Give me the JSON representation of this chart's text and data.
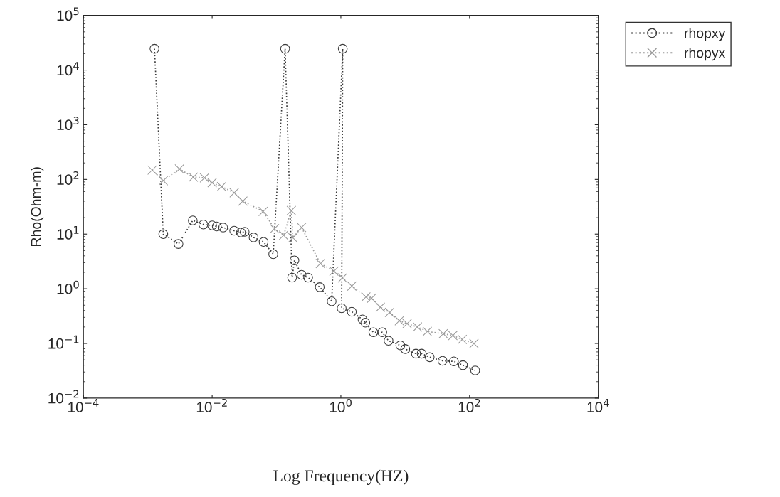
{
  "chart_data": {
    "type": "line",
    "xlabel": "Log Frequency(HZ)",
    "ylabel": "Rho(Ohm-m)",
    "log": "xy",
    "grid": false,
    "legend": "top right",
    "line_style": "dotted",
    "xlim": [
      0.0001,
      10000
    ],
    "xticks": [
      {
        "value": 0.0001,
        "label": "10$^{−4}$"
      },
      {
        "value": 0.01,
        "label": "10$^{−2}$"
      },
      {
        "value": 1,
        "label": "10$^{0}$"
      },
      {
        "value": 100,
        "label": "10$^{2}$"
      },
      {
        "value": 10000,
        "label": "10$^{4}$"
      }
    ],
    "ylim": [
      0.01,
      100000
    ],
    "yticks": [
      {
        "value": 0.01,
        "label": "10$^{−2}$"
      },
      {
        "value": 0.1,
        "label": "10$^{−1}$"
      },
      {
        "value": 1,
        "label": "10$^{0}$"
      },
      {
        "value": 10,
        "label": "10$^{1}$"
      },
      {
        "value": 100,
        "label": "10$^{2}$"
      },
      {
        "value": 1000,
        "label": "10$^{3}$"
      },
      {
        "value": 10000,
        "label": "10$^{4}$"
      },
      {
        "value": 100000,
        "label": "10$^{5}$"
      }
    ],
    "series": [
      {
        "name": "rhopxy",
        "color": "#3a3a3a",
        "marker": "circle",
        "x": [
          0.00127,
          0.00174,
          0.003,
          0.005,
          0.0073,
          0.01,
          0.0118,
          0.0148,
          0.022,
          0.028,
          0.032,
          0.044,
          0.063,
          0.089,
          0.136,
          0.175,
          0.19,
          0.245,
          0.31,
          0.47,
          0.72,
          1.07,
          1.03,
          1.48,
          2.17,
          2.4,
          3.2,
          4.4,
          5.5,
          8.4,
          10,
          14.7,
          18,
          24,
          38,
          57,
          79,
          122
        ],
        "values": [
          24500,
          10,
          6.6,
          17.8,
          15,
          14.4,
          13.8,
          13.2,
          11.5,
          10.7,
          11,
          8.7,
          7.2,
          4.3,
          24500,
          1.6,
          3.3,
          1.8,
          1.6,
          1.07,
          0.59,
          24500,
          0.44,
          0.38,
          0.275,
          0.24,
          0.16,
          0.16,
          0.112,
          0.092,
          0.079,
          0.065,
          0.065,
          0.056,
          0.048,
          0.047,
          0.04,
          0.032
        ]
      },
      {
        "name": "rhopyx",
        "color": "#9a9a9a",
        "marker": "cross",
        "x": [
          0.00117,
          0.00174,
          0.0031,
          0.0051,
          0.0076,
          0.01,
          0.014,
          0.022,
          0.03,
          0.062,
          0.093,
          0.129,
          0.17,
          0.18,
          0.245,
          0.48,
          0.78,
          1.06,
          1.48,
          2.45,
          3.0,
          4.1,
          5.7,
          8.1,
          10.7,
          15.5,
          22,
          39,
          55,
          77,
          117
        ],
        "values": [
          148,
          95,
          155,
          110,
          107,
          87,
          74,
          57,
          40,
          26,
          12.6,
          9.5,
          27,
          8.6,
          13.2,
          2.9,
          2.1,
          1.58,
          1.12,
          0.71,
          0.67,
          0.46,
          0.37,
          0.26,
          0.23,
          0.2,
          0.166,
          0.15,
          0.14,
          0.118,
          0.1
        ]
      }
    ]
  }
}
